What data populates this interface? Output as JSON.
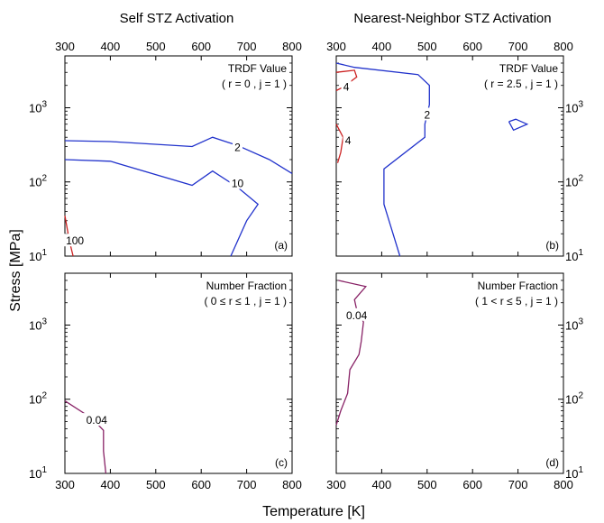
{
  "figure": {
    "column_titles": [
      "Self STZ Activation",
      "Nearest-Neighbor STZ Activation"
    ],
    "xlabel": "Temperature [K]",
    "ylabel": "Stress [MPa]"
  },
  "chart_data": [
    {
      "type": "line",
      "panel_label": "(a)",
      "annotation": [
        "TRDF Value",
        "( r = 0 , j = 1 )"
      ],
      "x_ticks": [
        "300",
        "400",
        "500",
        "600",
        "700",
        "800"
      ],
      "xlim": [
        300,
        800
      ],
      "ylim": [
        10,
        5000
      ],
      "yscale": "log",
      "y_ticks": [
        {
          "value": 10,
          "base": "10",
          "exp": "1"
        },
        {
          "value": 100,
          "base": "10",
          "exp": "2"
        },
        {
          "value": 1000,
          "base": "10",
          "exp": "3"
        }
      ],
      "series": [
        {
          "label": "2",
          "color": "#2233cc",
          "label_at": [
            680,
            290
          ],
          "points": [
            [
              300,
              360
            ],
            [
              400,
              350
            ],
            [
              580,
              300
            ],
            [
              625,
              400
            ],
            [
              680,
              310
            ],
            [
              750,
              200
            ],
            [
              800,
              130
            ]
          ]
        },
        {
          "label": "10",
          "color": "#2233cc",
          "label_at": [
            680,
            95
          ],
          "points": [
            [
              300,
              200
            ],
            [
              400,
              190
            ],
            [
              580,
              90
            ],
            [
              625,
              140
            ],
            [
              680,
              85
            ],
            [
              725,
              50
            ],
            [
              700,
              30
            ],
            [
              665,
              10
            ]
          ]
        },
        {
          "label": "100",
          "color": "#cc2222",
          "label_at": [
            322,
            16
          ],
          "points": [
            [
              300,
              35
            ],
            [
              310,
              16
            ],
            [
              318,
              10
            ]
          ]
        }
      ]
    },
    {
      "type": "line",
      "panel_label": "(b)",
      "annotation": [
        "TRDF Value",
        "( r = 2.5 , j = 1 )"
      ],
      "x_ticks": [
        "300",
        "400",
        "500",
        "600",
        "700",
        "800"
      ],
      "xlim": [
        300,
        800
      ],
      "ylim": [
        10,
        5000
      ],
      "yscale": "log",
      "y_ticks": [
        {
          "value": 10,
          "base": "10",
          "exp": "1"
        },
        {
          "value": 100,
          "base": "10",
          "exp": "2"
        },
        {
          "value": 1000,
          "base": "10",
          "exp": "3"
        }
      ],
      "series": [
        {
          "label": "2",
          "color": "#2233cc",
          "label_at": [
            500,
            800
          ],
          "points": [
            [
              300,
              4000
            ],
            [
              340,
              3500
            ],
            [
              480,
              2800
            ],
            [
              505,
              2000
            ],
            [
              505,
              1100
            ],
            [
              495,
              600
            ],
            [
              495,
              400
            ],
            [
              405,
              150
            ],
            [
              405,
              50
            ],
            [
              440,
              10
            ]
          ]
        },
        {
          "label": "",
          "color": "#2233cc",
          "label_at": null,
          "points": [
            [
              680,
              650
            ],
            [
              695,
              700
            ],
            [
              720,
              600
            ],
            [
              690,
              500
            ],
            [
              680,
              650
            ]
          ]
        },
        {
          "label": "4",
          "color": "#cc2222",
          "label_at": [
            322,
            1900
          ],
          "points": [
            [
              300,
              3000
            ],
            [
              340,
              3200
            ],
            [
              345,
              2600
            ],
            [
              315,
              1900
            ],
            [
              300,
              1700
            ]
          ]
        },
        {
          "label": "4",
          "color": "#cc2222",
          "label_at": [
            326,
            360
          ],
          "points": [
            [
              300,
              600
            ],
            [
              315,
              400
            ],
            [
              310,
              250
            ],
            [
              303,
              180
            ]
          ]
        }
      ]
    },
    {
      "type": "line",
      "panel_label": "(c)",
      "annotation": [
        "Number Fraction",
        "( 0 ≤ r  ≤ 1 , j = 1 )"
      ],
      "x_ticks": [
        "300",
        "400",
        "500",
        "600",
        "700",
        "800"
      ],
      "xlim": [
        300,
        800
      ],
      "ylim": [
        10,
        5000
      ],
      "yscale": "log",
      "y_ticks": [
        {
          "value": 10,
          "base": "10",
          "exp": "1"
        },
        {
          "value": 100,
          "base": "10",
          "exp": "2"
        },
        {
          "value": 1000,
          "base": "10",
          "exp": "3"
        }
      ],
      "series": [
        {
          "label": "0.04",
          "color": "#882266",
          "label_at": [
            370,
            52
          ],
          "points": [
            [
              300,
              95
            ],
            [
              360,
              55
            ],
            [
              385,
              38
            ],
            [
              385,
              20
            ],
            [
              390,
              10
            ]
          ]
        }
      ]
    },
    {
      "type": "line",
      "panel_label": "(d)",
      "annotation": [
        "Number Fraction",
        "( 1 < r  ≤ 5 , j = 1 )"
      ],
      "x_ticks": [
        "300",
        "400",
        "500",
        "600",
        "700",
        "800"
      ],
      "xlim": [
        300,
        800
      ],
      "ylim": [
        10,
        5000
      ],
      "yscale": "log",
      "y_ticks": [
        {
          "value": 10,
          "base": "10",
          "exp": "1"
        },
        {
          "value": 100,
          "base": "10",
          "exp": "2"
        },
        {
          "value": 1000,
          "base": "10",
          "exp": "3"
        }
      ],
      "series": [
        {
          "label": "0.04",
          "color": "#882266",
          "label_at": [
            345,
            1350
          ],
          "points": [
            [
              305,
              4000
            ],
            [
              365,
              3300
            ],
            [
              340,
              2200
            ],
            [
              345,
              1600
            ],
            [
              360,
              1100
            ],
            [
              355,
              600
            ],
            [
              350,
              400
            ],
            [
              330,
              250
            ],
            [
              325,
              120
            ],
            [
              310,
              70
            ],
            [
              300,
              45
            ]
          ]
        }
      ]
    }
  ]
}
